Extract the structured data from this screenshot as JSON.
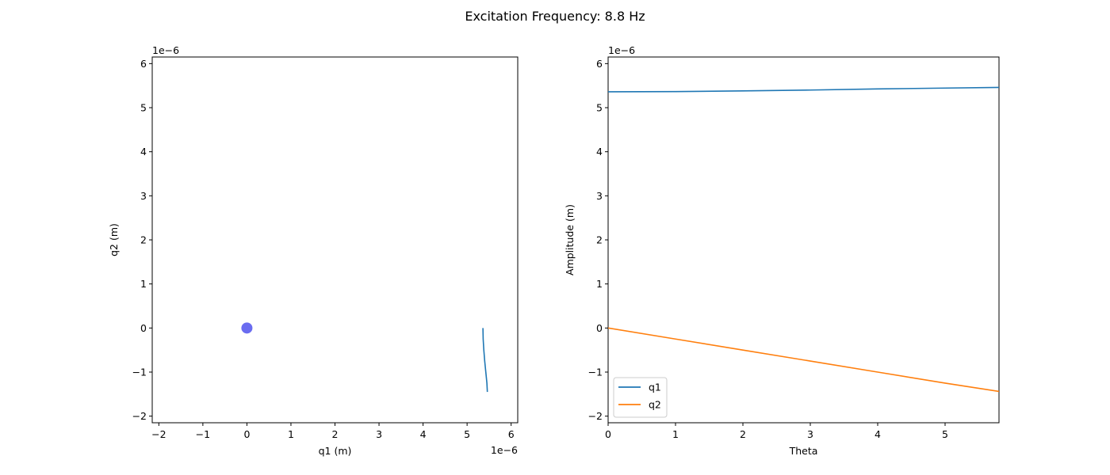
{
  "figure": {
    "title": "Excitation Frequency: 8.8 Hz"
  },
  "colors": {
    "q1": "#1f77b4",
    "q2": "#ff7f0e",
    "marker": "#6a6cf0",
    "axes": "#000000",
    "background": "#ffffff"
  },
  "chart_data": [
    {
      "type": "scatter",
      "title": "",
      "xlabel": "q1 (m)",
      "ylabel": "q2 (m)",
      "x_offset_label": "1e−6",
      "y_offset_label": "1e−6",
      "xlim": [
        -2.15,
        6.15
      ],
      "ylim": [
        -2.15,
        6.15
      ],
      "xticks": [
        -2,
        -1,
        0,
        1,
        2,
        3,
        4,
        5,
        6
      ],
      "yticks": [
        -2,
        -1,
        0,
        1,
        2,
        3,
        4,
        5,
        6
      ],
      "xtick_labels": [
        "−2",
        "−1",
        "0",
        "1",
        "2",
        "3",
        "4",
        "5",
        "6"
      ],
      "ytick_labels": [
        "−2",
        "−1",
        "0",
        "1",
        "2",
        "3",
        "4",
        "5",
        "6"
      ],
      "grid": false,
      "legend": null,
      "series": [
        {
          "kind": "line",
          "color": "#1f77b4",
          "x": [
            5.36,
            5.365,
            5.38,
            5.4,
            5.425,
            5.45,
            5.46
          ],
          "y": [
            0.0,
            -0.25,
            -0.5,
            -0.75,
            -1.0,
            -1.25,
            -1.45
          ]
        },
        {
          "kind": "point",
          "color": "#6a6cf0",
          "x": [
            0.0
          ],
          "y": [
            0.0
          ]
        }
      ]
    },
    {
      "type": "line",
      "title": "",
      "xlabel": "Theta",
      "ylabel": "Amplitude (m)",
      "y_offset_label": "1e−6",
      "xlim": [
        0,
        5.8
      ],
      "ylim": [
        -2.15,
        6.15
      ],
      "xticks": [
        0,
        1,
        2,
        3,
        4,
        5
      ],
      "yticks": [
        -2,
        -1,
        0,
        1,
        2,
        3,
        4,
        5,
        6
      ],
      "xtick_labels": [
        "0",
        "1",
        "2",
        "3",
        "4",
        "5"
      ],
      "ytick_labels": [
        "−2",
        "−1",
        "0",
        "1",
        "2",
        "3",
        "4",
        "5",
        "6"
      ],
      "grid": false,
      "legend": "lower-left",
      "series": [
        {
          "name": "q1",
          "color": "#1f77b4",
          "x": [
            0,
            1,
            2,
            3,
            4,
            5,
            5.8
          ],
          "y": [
            5.36,
            5.365,
            5.38,
            5.4,
            5.425,
            5.445,
            5.46
          ]
        },
        {
          "name": "q2",
          "color": "#ff7f0e",
          "x": [
            0,
            1,
            2,
            3,
            4,
            5,
            5.8
          ],
          "y": [
            0.0,
            -0.25,
            -0.5,
            -0.75,
            -1.0,
            -1.25,
            -1.44
          ]
        }
      ]
    }
  ]
}
